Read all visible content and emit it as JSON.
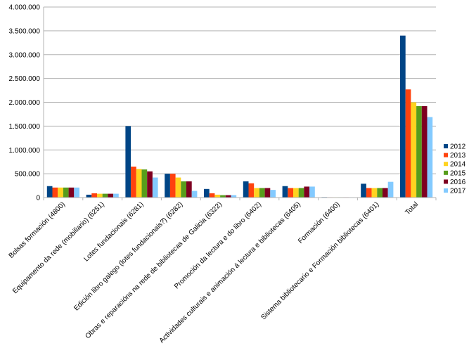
{
  "chart_data": {
    "type": "bar",
    "title": "",
    "xlabel": "",
    "ylabel": "",
    "ylim": [
      0,
      4000000
    ],
    "y_ticks": [
      0,
      500000,
      1000000,
      1500000,
      2000000,
      2500000,
      3000000,
      3500000,
      4000000
    ],
    "y_tick_labels": [
      "0",
      "500.000",
      "1.000.000",
      "1.500.000",
      "2.000.000",
      "2.500.000",
      "3.000.000",
      "3.500.000",
      "4.000.000"
    ],
    "grid": true,
    "legend_position": "right",
    "categories": [
      "Bolsas formación (4800)",
      "Equipamento da rede (mobiliario) (6251)",
      "Lotes fundacionais (6281)",
      "Edición libro galego (lotes fundacionais?) (6282)",
      "Obras e reparacións na rede de bibliotecas de Galicia (6322)",
      "Promoción da lectura e do libro (6402)",
      "Actividades culturais e animación á lectura e bibliotecas (6405)",
      "Formación (6400)",
      "Sistema bibliotecario e Formación bibliotecas (6401)",
      "Total"
    ],
    "series": [
      {
        "name": "2012",
        "color": "#004586",
        "values": [
          240000,
          60000,
          1500000,
          500000,
          180000,
          340000,
          240000,
          10000,
          290000,
          3400000
        ]
      },
      {
        "name": "2013",
        "color": "#ff420e",
        "values": [
          210000,
          90000,
          650000,
          500000,
          90000,
          300000,
          200000,
          8000,
          200000,
          2270000
        ]
      },
      {
        "name": "2014",
        "color": "#ffd320",
        "values": [
          210000,
          80000,
          600000,
          420000,
          60000,
          200000,
          200000,
          8000,
          200000,
          2000000
        ]
      },
      {
        "name": "2015",
        "color": "#579d1c",
        "values": [
          210000,
          80000,
          590000,
          340000,
          50000,
          200000,
          200000,
          8000,
          200000,
          1920000
        ]
      },
      {
        "name": "2016",
        "color": "#7e0021",
        "values": [
          210000,
          80000,
          550000,
          340000,
          50000,
          200000,
          230000,
          8000,
          200000,
          1920000
        ]
      },
      {
        "name": "2017",
        "color": "#83caff",
        "values": [
          210000,
          80000,
          420000,
          140000,
          50000,
          160000,
          230000,
          8000,
          330000,
          1690000
        ]
      }
    ]
  }
}
